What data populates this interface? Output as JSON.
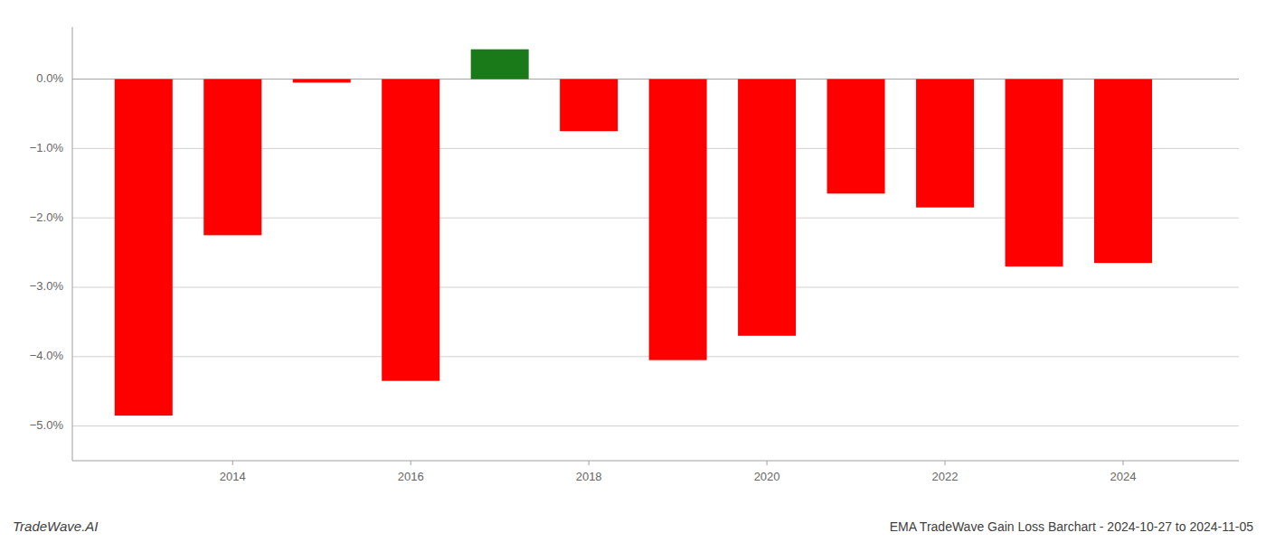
{
  "chart_data": {
    "type": "bar",
    "x": [
      2013,
      2014,
      2015,
      2016,
      2017,
      2018,
      2019,
      2020,
      2021,
      2022,
      2023,
      2024
    ],
    "values": [
      -4.85,
      -2.25,
      -0.05,
      -4.35,
      0.43,
      -0.75,
      -4.05,
      -3.7,
      -1.65,
      -1.85,
      -2.7,
      -2.65
    ],
    "colors": [
      "#ff0000",
      "#ff0000",
      "#ff0000",
      "#ff0000",
      "#1a7a1a",
      "#ff0000",
      "#ff0000",
      "#ff0000",
      "#ff0000",
      "#ff0000",
      "#ff0000",
      "#ff0000"
    ],
    "xlim": [
      2012.2,
      2025.3
    ],
    "xticks": [
      2014,
      2016,
      2018,
      2020,
      2022,
      2024
    ],
    "ylim": [
      -5.5,
      0.75
    ],
    "yticks": [
      {
        "value": 0.0,
        "label": "0.0%"
      },
      {
        "value": -1.0,
        "label": "−1.0%"
      },
      {
        "value": -2.0,
        "label": "−2.0%"
      },
      {
        "value": -3.0,
        "label": "−3.0%"
      },
      {
        "value": -4.0,
        "label": "−4.0%"
      },
      {
        "value": -5.0,
        "label": "−5.0%"
      }
    ],
    "grid": true,
    "annotations": [
      "TradeWave.AI",
      "EMA TradeWave Gain Loss Barchart - 2024-10-27 to 2024-11-05"
    ]
  }
}
